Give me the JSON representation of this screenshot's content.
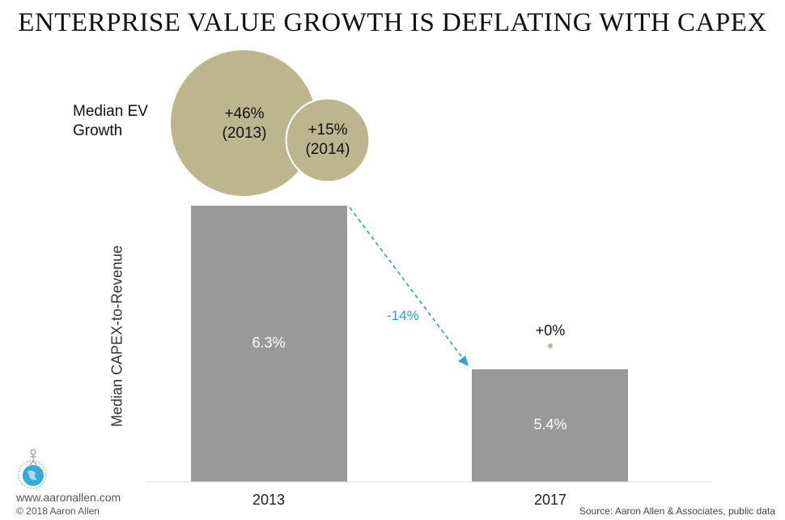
{
  "title": "ENTERPRISE VALUE GROWTH IS DEFLATING WITH CAPEX",
  "chart_data": [
    {
      "type": "bubble",
      "label": "Median EV Growth",
      "points": [
        {
          "value": 46,
          "text": "+46%",
          "year_text": "(2013)"
        },
        {
          "value": 15,
          "text": "+15%",
          "year_text": "(2014)"
        },
        {
          "value": 0,
          "text": "+0%",
          "year_text": ""
        }
      ],
      "color": "#bdb58d"
    },
    {
      "type": "bar",
      "ylabel": "Median CAPEX-to-Revenue",
      "categories": [
        "2013",
        "2017"
      ],
      "values": [
        6.3,
        5.4
      ],
      "data_labels": [
        "6.3%",
        "5.4%"
      ],
      "ylim": [
        4.78,
        6.3
      ],
      "color": "#999999",
      "annotation": {
        "text": "-14%",
        "color": "#2a9fd8",
        "style": "dashed-arrow"
      }
    }
  ],
  "footer": {
    "website": "www.aaronallen.com",
    "copyright": "© 2018 Aaron Allen",
    "source": "Source: Aaron Allen & Associates, public data"
  }
}
